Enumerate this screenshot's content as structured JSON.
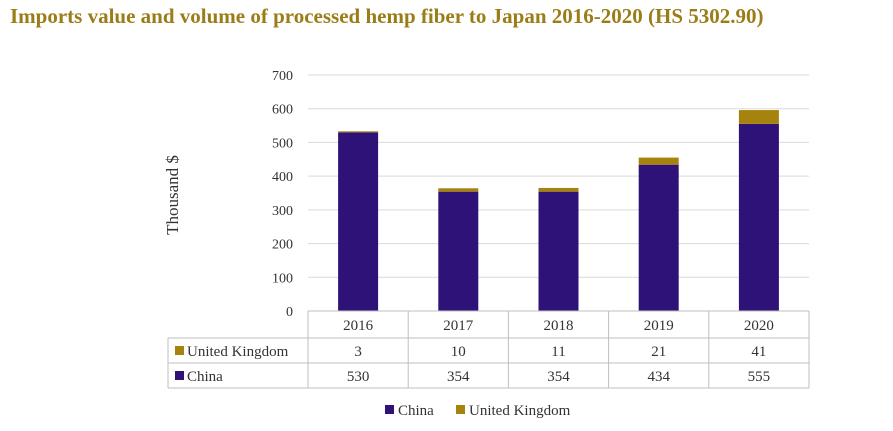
{
  "title": "Imports value and volume of processed hemp fiber to Japan 2016-2020 (HS 5302.90)",
  "chart_data": {
    "type": "bar",
    "stacked": true,
    "categories": [
      "2016",
      "2017",
      "2018",
      "2019",
      "2020"
    ],
    "series": [
      {
        "name": "China",
        "values": [
          530,
          354,
          354,
          434,
          555
        ],
        "color": "#2f1278"
      },
      {
        "name": "United Kingdom",
        "values": [
          3,
          10,
          11,
          21,
          41
        ],
        "color": "#a6820f"
      }
    ],
    "ylabel": "Thousand $",
    "ylim": [
      0,
      700
    ],
    "yticks": [
      0,
      100,
      200,
      300,
      400,
      500,
      600,
      700
    ],
    "data_table": true,
    "legend": [
      "China",
      "United Kingdom"
    ],
    "legend_position": "bottom"
  }
}
